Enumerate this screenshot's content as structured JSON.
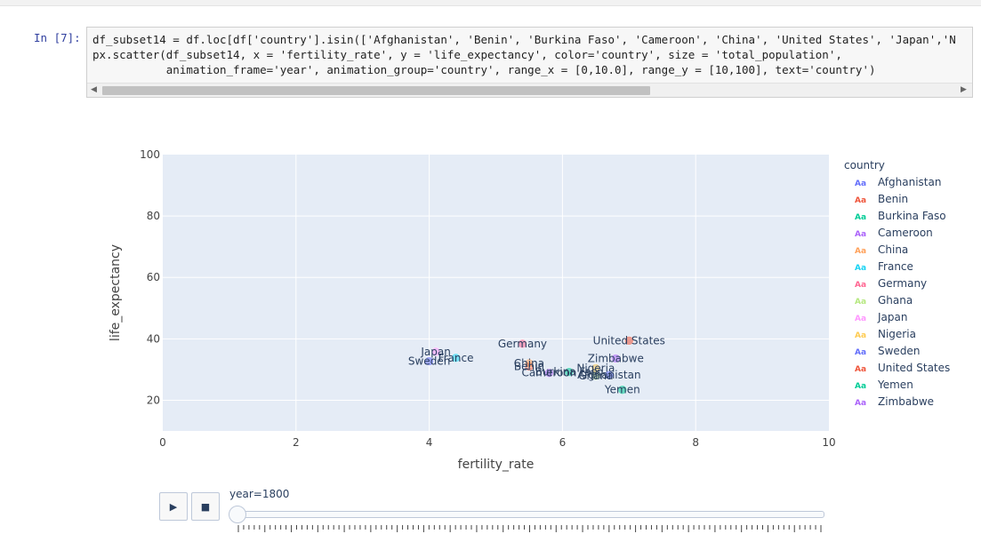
{
  "cell": {
    "prompt": "In [7]:",
    "code_lines": [
      "df_subset14 = df.loc[df['country'].isin(['Afghanistan', 'Benin', 'Burkina Faso', 'Cameroon', 'China', 'United States', 'Japan','N",
      "px.scatter(df_subset14, x = 'fertility_rate', y = 'life_expectancy', color='country', size = 'total_population',",
      "           animation_frame='year', animation_group='country', range_x = [0,10.0], range_y = [10,100], text='country')"
    ]
  },
  "chart_data": {
    "type": "scatter",
    "xlabel": "fertility_rate",
    "ylabel": "life_expectancy",
    "xlim": [
      0,
      10
    ],
    "ylim": [
      10,
      100
    ],
    "x_ticks": [
      "0",
      "2",
      "4",
      "6",
      "8",
      "10"
    ],
    "y_ticks": [
      "20",
      "40",
      "60",
      "80",
      "100"
    ],
    "grid": true,
    "legend_title": "country",
    "legend_placement": "right",
    "points": [
      {
        "name": "Afghanistan",
        "x": 6.7,
        "y": 28.2,
        "color": "#636efa"
      },
      {
        "name": "Benin",
        "x": 5.5,
        "y": 31.0,
        "color": "#ef553b"
      },
      {
        "name": "Burkina Faso",
        "x": 6.1,
        "y": 29.2,
        "color": "#00cc96"
      },
      {
        "name": "Cameroon",
        "x": 5.8,
        "y": 28.9,
        "color": "#ab63fa"
      },
      {
        "name": "China",
        "x": 5.5,
        "y": 32.0,
        "color": "#ffa15a"
      },
      {
        "name": "France",
        "x": 4.4,
        "y": 33.8,
        "color": "#19d3f3"
      },
      {
        "name": "Germany",
        "x": 5.4,
        "y": 38.4,
        "color": "#ff6692"
      },
      {
        "name": "Ghana",
        "x": 6.5,
        "y": 28.0,
        "color": "#b6e880"
      },
      {
        "name": "Japan",
        "x": 4.1,
        "y": 35.8,
        "color": "#ff97ff"
      },
      {
        "name": "Nigeria",
        "x": 6.5,
        "y": 30.4,
        "color": "#fecb52"
      },
      {
        "name": "Sweden",
        "x": 4.0,
        "y": 32.7,
        "color": "#636efa"
      },
      {
        "name": "United States",
        "x": 7.0,
        "y": 39.4,
        "color": "#ef553b"
      },
      {
        "name": "Yemen",
        "x": 6.9,
        "y": 23.4,
        "color": "#00cc96"
      },
      {
        "name": "Zimbabwe",
        "x": 6.8,
        "y": 33.6,
        "color": "#ab63fa"
      }
    ]
  },
  "animation": {
    "play_icon": "play-icon",
    "stop_icon": "stop-icon",
    "label": "year=1800",
    "value_fraction": 0
  }
}
